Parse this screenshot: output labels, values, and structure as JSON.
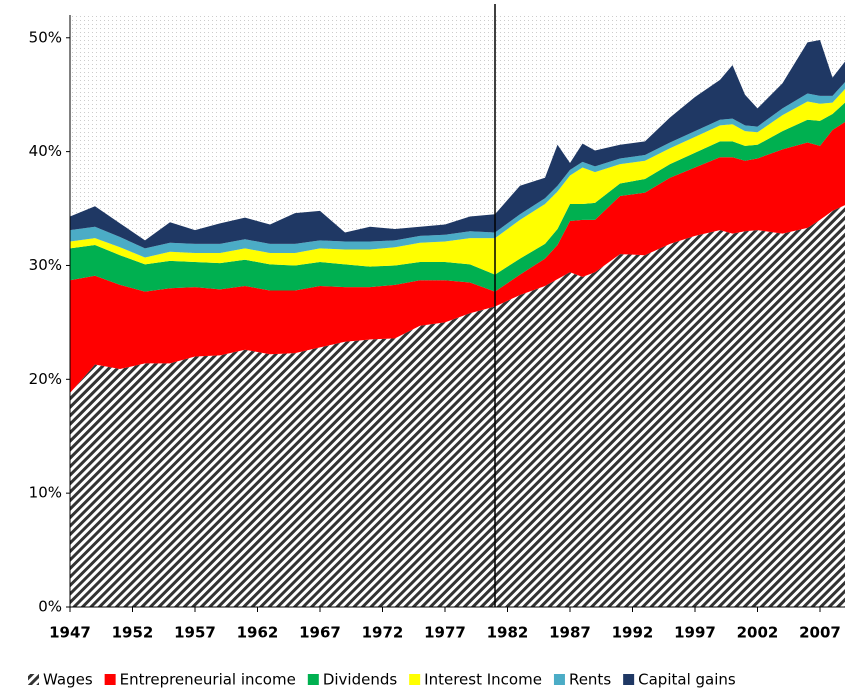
{
  "chart_data": {
    "type": "stacked_area",
    "x": [
      1947,
      1949,
      1951,
      1953,
      1955,
      1957,
      1959,
      1961,
      1963,
      1965,
      1967,
      1969,
      1971,
      1973,
      1975,
      1977,
      1979,
      1981,
      1983,
      1985,
      1986,
      1987,
      1988,
      1989,
      1991,
      1993,
      1995,
      1997,
      1999,
      2000,
      2001,
      2002,
      2004,
      2006,
      2007,
      2008,
      2009
    ],
    "series": [
      {
        "name": "Wages",
        "color": "#333333",
        "pattern": "hatch",
        "values": [
          18.8,
          21.3,
          20.9,
          21.4,
          21.4,
          22.0,
          22.1,
          22.6,
          22.2,
          22.3,
          22.8,
          23.3,
          23.5,
          23.6,
          24.7,
          25.0,
          25.8,
          26.4,
          27.4,
          28.2,
          28.8,
          29.4,
          29.0,
          29.4,
          31.0,
          30.9,
          31.9,
          32.6,
          33.1,
          32.8,
          33.0,
          33.1,
          32.8,
          33.3,
          34.0,
          34.8,
          35.3
        ]
      },
      {
        "name": "Entrepreneurial income",
        "color": "#ff0000",
        "values": [
          9.9,
          7.8,
          7.4,
          6.3,
          6.6,
          6.1,
          5.8,
          5.6,
          5.6,
          5.5,
          5.4,
          4.8,
          4.6,
          4.7,
          4.0,
          3.7,
          2.7,
          1.3,
          1.8,
          2.4,
          3.0,
          4.5,
          5.0,
          4.6,
          5.1,
          5.5,
          5.8,
          6.0,
          6.4,
          6.7,
          6.2,
          6.3,
          7.4,
          7.5,
          6.5,
          7.1,
          7.3
        ]
      },
      {
        "name": "Dividends",
        "color": "#00b050",
        "values": [
          2.8,
          2.7,
          2.6,
          2.4,
          2.4,
          2.2,
          2.3,
          2.3,
          2.3,
          2.2,
          2.1,
          2.0,
          1.8,
          1.7,
          1.6,
          1.6,
          1.6,
          1.5,
          1.4,
          1.3,
          1.4,
          1.5,
          1.4,
          1.5,
          1.1,
          1.2,
          1.2,
          1.3,
          1.4,
          1.4,
          1.3,
          1.2,
          1.6,
          2.0,
          2.2,
          1.4,
          1.7
        ]
      },
      {
        "name": "Interest Income",
        "color": "#ffff00",
        "values": [
          0.6,
          0.6,
          0.7,
          0.6,
          0.8,
          0.8,
          0.9,
          1.0,
          1.0,
          1.1,
          1.2,
          1.3,
          1.5,
          1.6,
          1.7,
          1.8,
          2.3,
          3.2,
          3.4,
          3.5,
          3.3,
          2.5,
          3.2,
          2.7,
          1.7,
          1.6,
          1.4,
          1.4,
          1.4,
          1.5,
          1.3,
          1.1,
          1.4,
          1.6,
          1.5,
          1.0,
          1.2
        ]
      },
      {
        "name": "Rents",
        "color": "#4bacc6",
        "values": [
          1.0,
          1.0,
          0.9,
          0.8,
          0.8,
          0.8,
          0.8,
          0.8,
          0.8,
          0.8,
          0.7,
          0.7,
          0.7,
          0.6,
          0.6,
          0.6,
          0.6,
          0.5,
          0.5,
          0.5,
          0.5,
          0.5,
          0.5,
          0.5,
          0.5,
          0.5,
          0.5,
          0.5,
          0.5,
          0.5,
          0.5,
          0.5,
          0.6,
          0.7,
          0.7,
          0.6,
          0.6
        ]
      },
      {
        "name": "Capital gains",
        "color": "#1f3864",
        "values": [
          1.2,
          1.8,
          1.2,
          0.7,
          1.8,
          1.2,
          1.8,
          1.9,
          1.7,
          2.7,
          2.6,
          0.8,
          1.3,
          1.0,
          0.8,
          0.9,
          1.3,
          1.6,
          2.5,
          1.8,
          3.6,
          0.6,
          1.6,
          1.4,
          1.2,
          1.2,
          2.2,
          3.0,
          3.5,
          4.7,
          2.7,
          1.6,
          2.2,
          4.5,
          4.9,
          1.6,
          1.8
        ]
      }
    ],
    "xlim": [
      1947,
      2009
    ],
    "xticks": [
      1947,
      1952,
      1957,
      1962,
      1967,
      1972,
      1977,
      1982,
      1987,
      1992,
      1997,
      2002,
      2007
    ],
    "ylim": [
      0,
      52
    ],
    "yticks": [
      {
        "value": 0,
        "label": "0%"
      },
      {
        "value": 10,
        "label": "10%"
      },
      {
        "value": 20,
        "label": "20%"
      },
      {
        "value": 30,
        "label": "30%"
      },
      {
        "value": 40,
        "label": "40%"
      },
      {
        "value": 50,
        "label": "50%"
      }
    ],
    "reference_line_x": 1981,
    "legend": "bottom"
  }
}
